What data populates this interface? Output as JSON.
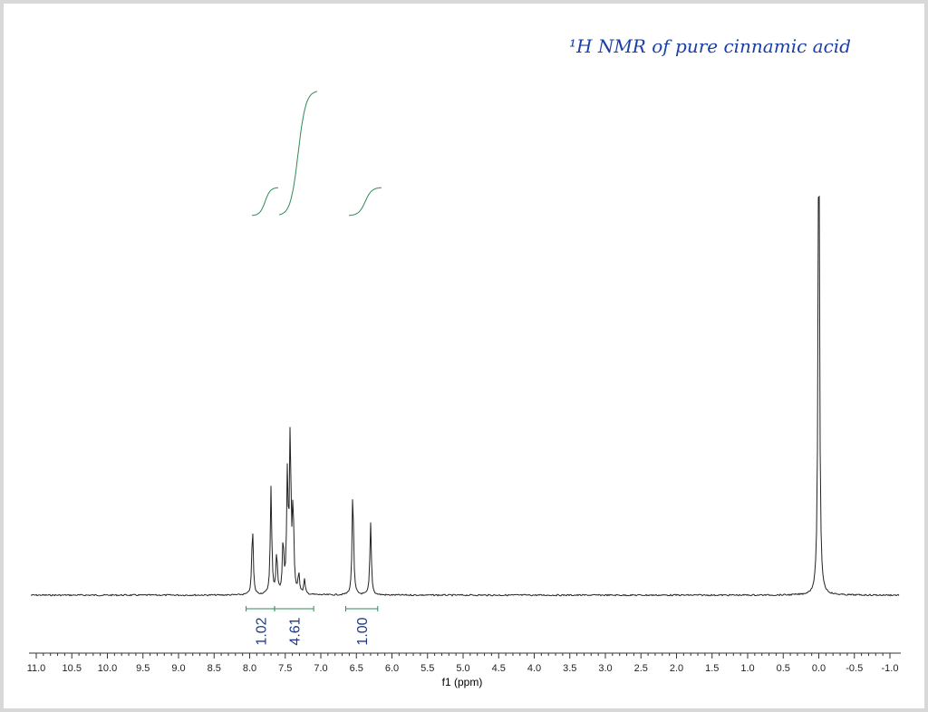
{
  "annotation": "¹H NMR of pure cinnamic acid",
  "chart_data": {
    "type": "line",
    "xlabel": "f1 (ppm)",
    "xlim": [
      11.0,
      -1.0
    ],
    "x_reversed": true,
    "ticks": [
      "11.0",
      "10.5",
      "10.0",
      "9.5",
      "9.0",
      "8.5",
      "8.0",
      "7.5",
      "7.0",
      "6.5",
      "6.0",
      "5.5",
      "5.0",
      "4.5",
      "4.0",
      "3.5",
      "3.0",
      "2.5",
      "2.0",
      "1.5",
      "1.0",
      "0.5",
      "0.0",
      "-0.5",
      "-1.0"
    ],
    "peaks": [
      {
        "ppm": 7.96,
        "intensity": 0.24
      },
      {
        "ppm": 7.7,
        "intensity": 0.37
      },
      {
        "ppm": 7.62,
        "intensity": 0.14
      },
      {
        "ppm": 7.53,
        "intensity": 0.18
      },
      {
        "ppm": 7.47,
        "intensity": 0.4
      },
      {
        "ppm": 7.43,
        "intensity": 0.55
      },
      {
        "ppm": 7.39,
        "intensity": 0.3
      },
      {
        "ppm": 7.31,
        "intensity": 0.07
      },
      {
        "ppm": 7.23,
        "intensity": 0.05
      },
      {
        "ppm": 6.55,
        "intensity": 0.37
      },
      {
        "ppm": 6.3,
        "intensity": 0.25
      },
      {
        "ppm": 0.0,
        "intensity": 1.76
      }
    ],
    "integrals": [
      {
        "from": 8.05,
        "to": 7.65,
        "value": "1.02"
      },
      {
        "from": 7.65,
        "to": 7.1,
        "value": "4.61"
      },
      {
        "from": 6.65,
        "to": 6.2,
        "value": "1.00"
      }
    ],
    "line_color": "#222222",
    "integral_color": "#2e8b57",
    "label_color": "#1f3a8a",
    "annotation_color": "#1a3fa8"
  }
}
